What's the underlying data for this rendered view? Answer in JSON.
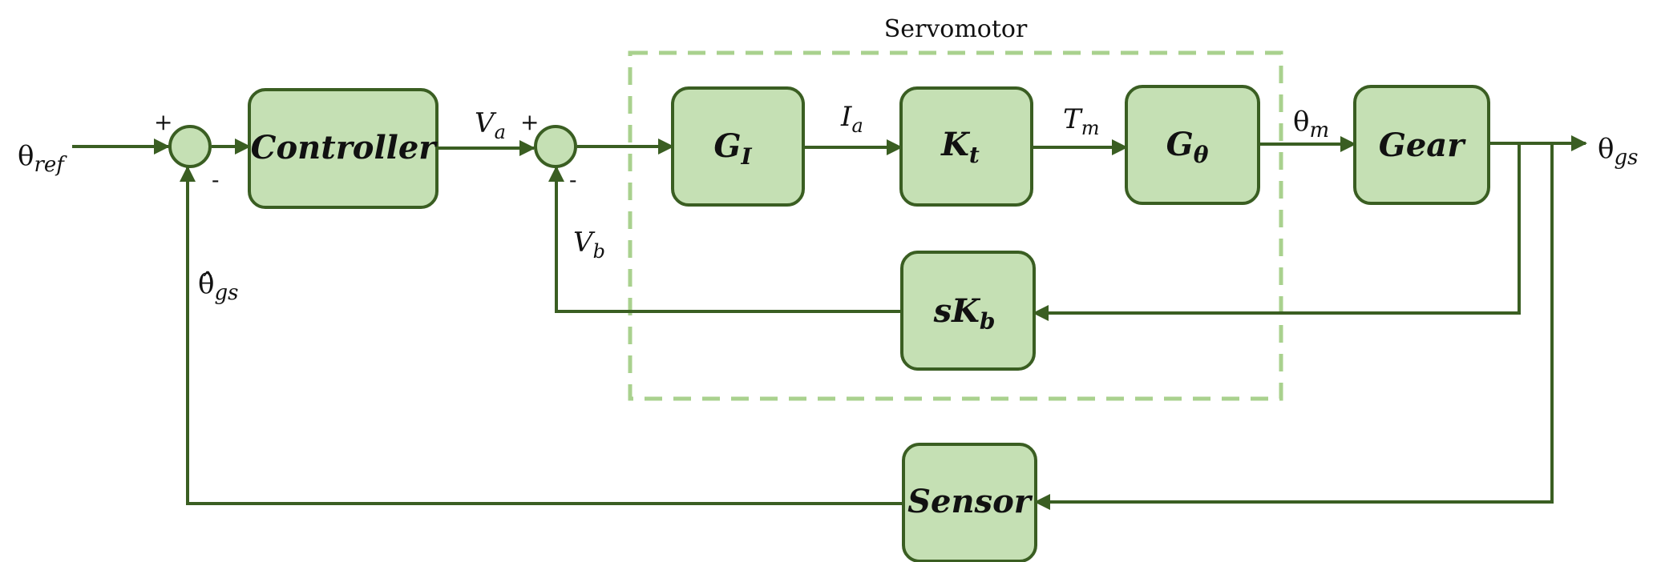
{
  "servomotor_label": "Servomotor",
  "blocks": {
    "controller": "Controller",
    "gi_main": "G",
    "gi_sub": "I",
    "kt_main": "K",
    "kt_sub": "t",
    "gtheta_main": "G",
    "gtheta_sub": "θ",
    "gear": "Gear",
    "skb_main": "sK",
    "skb_sub": "b",
    "sensor": "Sensor"
  },
  "signals": {
    "theta_ref_main": "θ",
    "theta_ref_sub": "ref",
    "va_main": "V",
    "va_sub": "a",
    "ia_main": "I",
    "ia_sub": "a",
    "tm_main": "T",
    "tm_sub": "m",
    "theta_m_main": "θ",
    "theta_m_sub": "m",
    "theta_gs_main": "θ",
    "theta_gs_sub": "gs",
    "vb_main": "V",
    "vb_sub": "b",
    "theta_hat_gs_main": "θ̂",
    "theta_hat_gs_sub": "gs"
  },
  "signs": {
    "sum1_plus": "+",
    "sum1_minus": "-",
    "sum2_plus": "+",
    "sum2_minus": "-"
  }
}
